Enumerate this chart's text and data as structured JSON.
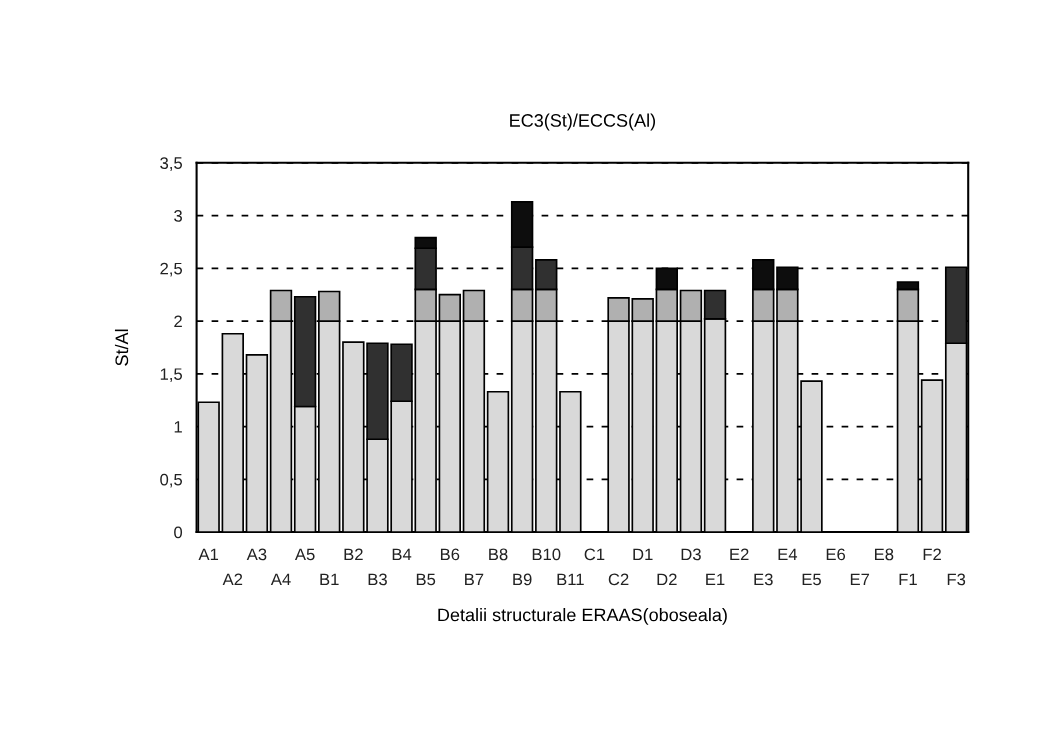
{
  "chart_data": {
    "type": "bar",
    "stacked": true,
    "title": "EC3(St)/ECCS(Al)",
    "xlabel": "Detalii structurale ERAAS(oboseala)",
    "ylabel": "St/Al",
    "categories": [
      "A1",
      "A2",
      "A3",
      "A4",
      "A5",
      "B1",
      "B2",
      "B3",
      "B4",
      "B5",
      "B6",
      "B7",
      "B8",
      "B9",
      "B10",
      "B11",
      "C1",
      "C2",
      "D1",
      "D2",
      "D3",
      "E1",
      "E2",
      "E3",
      "E4",
      "E5",
      "E6",
      "E7",
      "E8",
      "F1",
      "F2",
      "F3"
    ],
    "series": [
      {
        "color": "#d9d9d9",
        "values": [
          1.23,
          1.88,
          1.68,
          2.0,
          1.19,
          2.0,
          1.8,
          0.88,
          1.24,
          2.0,
          2.0,
          2.0,
          1.33,
          2.0,
          2.0,
          1.33,
          null,
          2.0,
          2.0,
          2.0,
          2.0,
          2.02,
          null,
          2.0,
          2.0,
          1.43,
          null,
          null,
          null,
          2.0,
          1.44,
          1.79
        ]
      },
      {
        "color": "#b0b0b0",
        "values": [
          null,
          null,
          null,
          0.29,
          null,
          0.28,
          null,
          null,
          null,
          0.3,
          0.25,
          0.29,
          null,
          0.3,
          0.3,
          null,
          null,
          0.22,
          0.21,
          0.3,
          0.29,
          null,
          null,
          0.3,
          0.3,
          null,
          null,
          null,
          null,
          0.3,
          null,
          null
        ]
      },
      {
        "color": "#303030",
        "values": [
          null,
          null,
          null,
          null,
          1.04,
          null,
          null,
          0.91,
          0.54,
          0.39,
          null,
          null,
          null,
          0.4,
          0.28,
          null,
          null,
          null,
          null,
          null,
          null,
          0.27,
          null,
          null,
          null,
          null,
          null,
          null,
          null,
          null,
          null,
          0.72
        ]
      },
      {
        "color": "#0d0d0d",
        "values": [
          null,
          null,
          null,
          null,
          null,
          null,
          null,
          null,
          null,
          0.1,
          null,
          null,
          null,
          0.43,
          null,
          null,
          null,
          null,
          null,
          0.2,
          null,
          null,
          null,
          0.28,
          0.21,
          null,
          null,
          null,
          null,
          0.07,
          null,
          null
        ]
      }
    ],
    "ylim": [
      0,
      3.5
    ],
    "yticks": [
      0,
      {
        "value": 0.5,
        "label": "0,5"
      },
      1,
      {
        "value": 1.5,
        "label": "1,5"
      },
      2,
      {
        "value": 2.5,
        "label": "2,5"
      },
      3,
      {
        "value": 3.5,
        "label": "3,5"
      }
    ],
    "grid": "y"
  }
}
